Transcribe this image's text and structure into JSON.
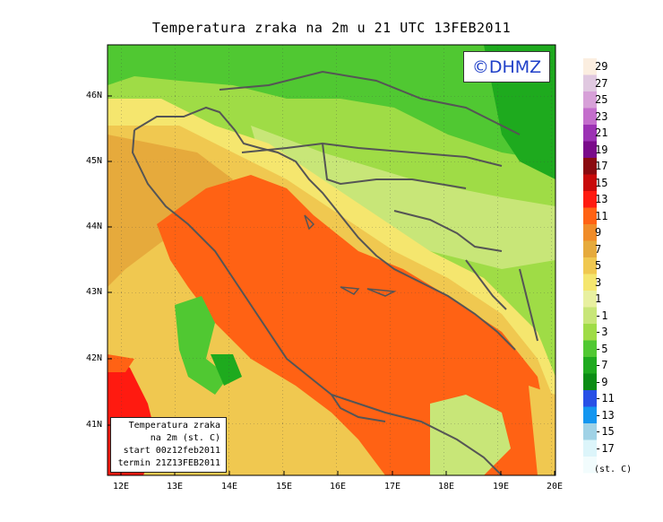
{
  "title": "Temperatura zraka na 2m u 21 UTC 13FEB2011",
  "logo": "©DHMZ",
  "info": {
    "line1": "Temperatura zraka",
    "line2": "na 2m (st. C)",
    "line3": "start 00z12feb2011",
    "line4": "termin 21Z13FEB2011"
  },
  "lat_labels": [
    "46N",
    "45N",
    "44N",
    "43N",
    "42N",
    "41N"
  ],
  "lon_labels": [
    "12E",
    "13E",
    "14E",
    "15E",
    "16E",
    "17E",
    "18E",
    "19E",
    "20E"
  ],
  "colorbar": {
    "labels": [
      "29",
      "27",
      "25",
      "23",
      "21",
      "19",
      "17",
      "15",
      "13",
      "11",
      "9",
      "7",
      "5",
      "3",
      "1",
      "-1",
      "-3",
      "-5",
      "-7",
      "-9",
      "-11",
      "-13",
      "-15",
      "-17"
    ],
    "unit": "(st. C)",
    "colors": [
      "#fbeee0",
      "#e0c8e0",
      "#d7a0d8",
      "#c46ecc",
      "#9c32b4",
      "#7a0a8a",
      "#8a0a10",
      "#c80a0a",
      "#ff1a10",
      "#ff6214",
      "#f08c28",
      "#e6aa3c",
      "#f0c850",
      "#f5e66e",
      "#e8f0a0",
      "#c8e678",
      "#9fdc46",
      "#50c832",
      "#1eaa1e",
      "#0a8c14",
      "#2850e6",
      "#1496f0",
      "#a0d2e6",
      "#dcf5fa",
      "#f2fcfd"
    ]
  }
}
